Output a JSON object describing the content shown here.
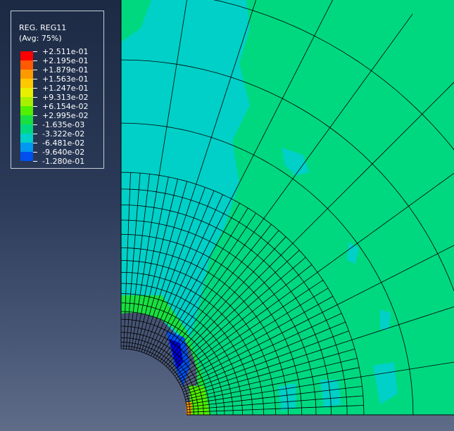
{
  "legend": {
    "title": "REG. REG11",
    "subtitle": "(Avg: 75%)",
    "levels": [
      {
        "label": "+2.511e-01",
        "color": "#ff0000"
      },
      {
        "label": "+2.195e-01",
        "color": "#ff5a00"
      },
      {
        "label": "+1.879e-01",
        "color": "#ff9900"
      },
      {
        "label": "+1.563e-01",
        "color": "#ffc800"
      },
      {
        "label": "+1.247e-01",
        "color": "#e8f000"
      },
      {
        "label": "+9.313e-02",
        "color": "#a8f000"
      },
      {
        "label": "+6.154e-02",
        "color": "#50f000"
      },
      {
        "label": "+2.995e-02",
        "color": "#18e040"
      },
      {
        "label": "-1.635e-03",
        "color": "#00d880"
      },
      {
        "label": "-3.322e-02",
        "color": "#00d0c8"
      },
      {
        "label": "-6.481e-02",
        "color": "#0098f0"
      },
      {
        "label": "-9.640e-02",
        "color": "#0050f0"
      },
      {
        "label": "-1.280e-01",
        "color": "#0000d8"
      }
    ]
  },
  "contour_colors": {
    "base": "#00d880",
    "negative_patch": "#00d0c8",
    "low": "#0050f0",
    "lowest": "#0000d8",
    "high": "#18e040",
    "higher": "#50f000",
    "peak": "#ff9900"
  }
}
